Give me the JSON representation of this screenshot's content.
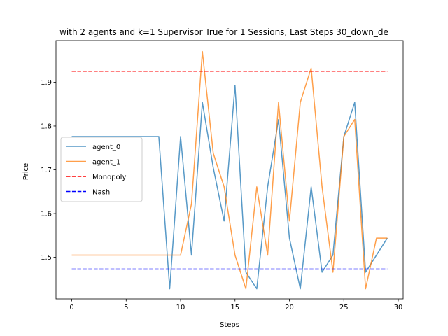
{
  "chart_data": {
    "type": "line",
    "title": "with 2 agents and k=1 Supervisor True for 1 Sessions, Last Steps 30_down_de",
    "xlabel": "Steps",
    "ylabel": "Price",
    "xlim": [
      -1.45,
      30.45
    ],
    "ylim": [
      1.405,
      1.995
    ],
    "xticks": [
      0,
      5,
      10,
      15,
      20,
      25,
      30
    ],
    "yticks": [
      1.5,
      1.6,
      1.7,
      1.8,
      1.9
    ],
    "legend_position": "center-left",
    "grid": false,
    "series": [
      {
        "name": "agent_0",
        "color": "#1f77b4",
        "style": "solid",
        "x": [
          0,
          1,
          2,
          3,
          4,
          5,
          6,
          7,
          8,
          9,
          10,
          11,
          12,
          13,
          14,
          15,
          16,
          17,
          18,
          19,
          20,
          21,
          22,
          23,
          24,
          25,
          26,
          27,
          28,
          29
        ],
        "values": [
          1.776,
          1.776,
          1.776,
          1.776,
          1.776,
          1.776,
          1.776,
          1.776,
          1.776,
          1.428,
          1.776,
          1.505,
          1.854,
          1.705,
          1.583,
          1.893,
          1.466,
          1.428,
          1.661,
          1.815,
          1.544,
          1.428,
          1.661,
          1.466,
          1.505,
          1.776,
          1.854,
          1.466,
          1.505,
          1.544
        ]
      },
      {
        "name": "agent_1",
        "color": "#ff7f0e",
        "style": "solid",
        "x": [
          0,
          1,
          2,
          3,
          4,
          5,
          6,
          7,
          8,
          9,
          10,
          11,
          12,
          13,
          14,
          15,
          16,
          17,
          18,
          19,
          20,
          21,
          22,
          23,
          24,
          25,
          26,
          27,
          28,
          29
        ],
        "values": [
          1.505,
          1.505,
          1.505,
          1.505,
          1.505,
          1.505,
          1.505,
          1.505,
          1.505,
          1.505,
          1.505,
          1.622,
          1.97,
          1.738,
          1.661,
          1.505,
          1.428,
          1.661,
          1.505,
          1.854,
          1.583,
          1.854,
          1.932,
          1.661,
          1.466,
          1.776,
          1.815,
          1.428,
          1.544,
          1.544
        ]
      },
      {
        "name": "Monopoly",
        "color": "#ff0000",
        "style": "dashed",
        "x": [
          0,
          29
        ],
        "values": [
          1.925,
          1.925
        ]
      },
      {
        "name": "Nash",
        "color": "#0000ff",
        "style": "dashed",
        "x": [
          0,
          29
        ],
        "values": [
          1.473,
          1.473
        ]
      }
    ]
  }
}
